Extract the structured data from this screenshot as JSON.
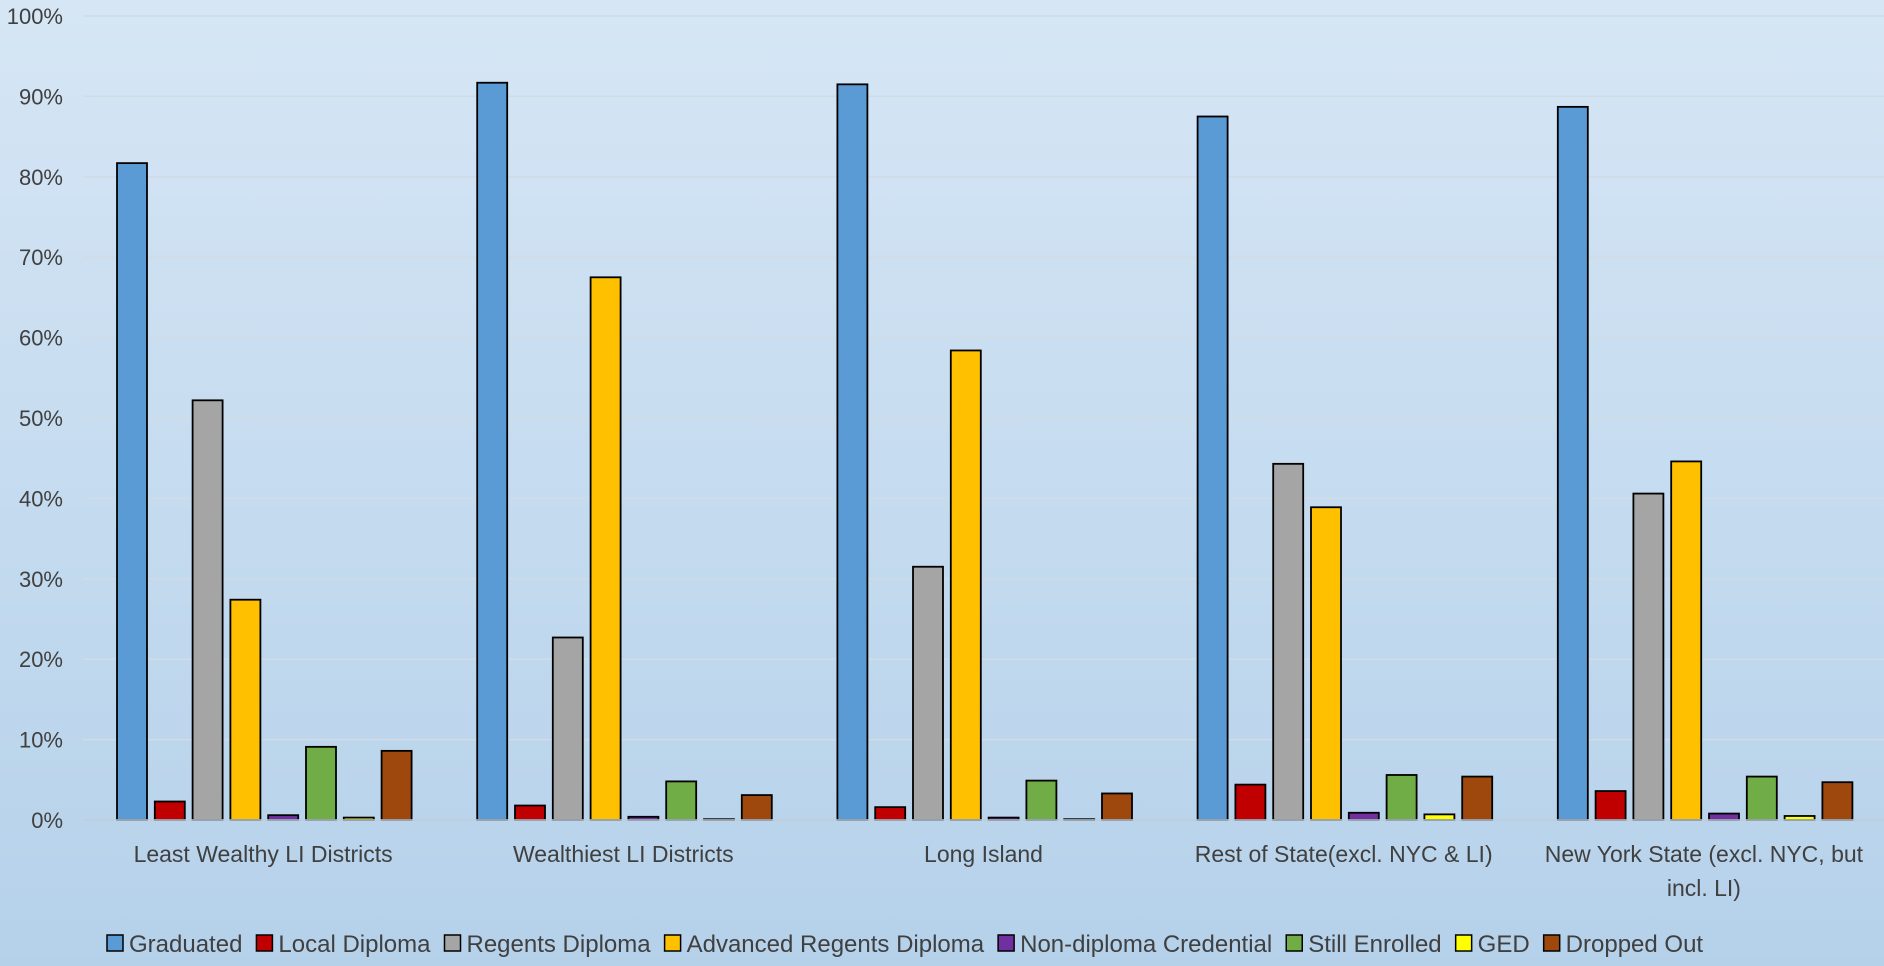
{
  "chart_data": {
    "type": "bar",
    "categories": [
      [
        "Least Wealthy LI Districts"
      ],
      [
        "Wealthiest LI Districts"
      ],
      [
        "Long Island"
      ],
      [
        "Rest of State(excl. NYC & LI)"
      ],
      [
        "New York State (excl. NYC, but",
        "incl. LI)"
      ]
    ],
    "y_ticks": [
      "0%",
      "10%",
      "20%",
      "30%",
      "40%",
      "50%",
      "60%",
      "70%",
      "80%",
      "90%",
      "100%"
    ],
    "ylim": [
      0,
      100
    ],
    "grid": true,
    "legend_position": "bottom",
    "series": [
      {
        "name": "Graduated",
        "color": "#5b9bd5",
        "values": [
          81.7,
          91.7,
          91.5,
          87.5,
          88.7
        ]
      },
      {
        "name": "Local Diploma",
        "color": "#c00000",
        "values": [
          2.3,
          1.8,
          1.6,
          4.4,
          3.6
        ]
      },
      {
        "name": "Regents Diploma",
        "color": "#a5a5a5",
        "values": [
          52.2,
          22.7,
          31.5,
          44.3,
          40.6
        ]
      },
      {
        "name": "Advanced Regents Diploma",
        "color": "#ffc000",
        "values": [
          27.4,
          67.5,
          58.4,
          38.9,
          44.6
        ]
      },
      {
        "name": "Non-diploma Credential",
        "color": "#7030a0",
        "values": [
          0.6,
          0.4,
          0.3,
          0.9,
          0.8
        ]
      },
      {
        "name": "Still Enrolled",
        "color": "#70ad47",
        "values": [
          9.1,
          4.8,
          4.9,
          5.6,
          5.4
        ]
      },
      {
        "name": "GED",
        "color": "#ffff00",
        "values": [
          0.3,
          0.0,
          0.1,
          0.7,
          0.5
        ]
      },
      {
        "name": "Dropped Out",
        "color": "#9e480e",
        "values": [
          8.6,
          3.1,
          3.3,
          5.4,
          4.7
        ]
      }
    ]
  }
}
